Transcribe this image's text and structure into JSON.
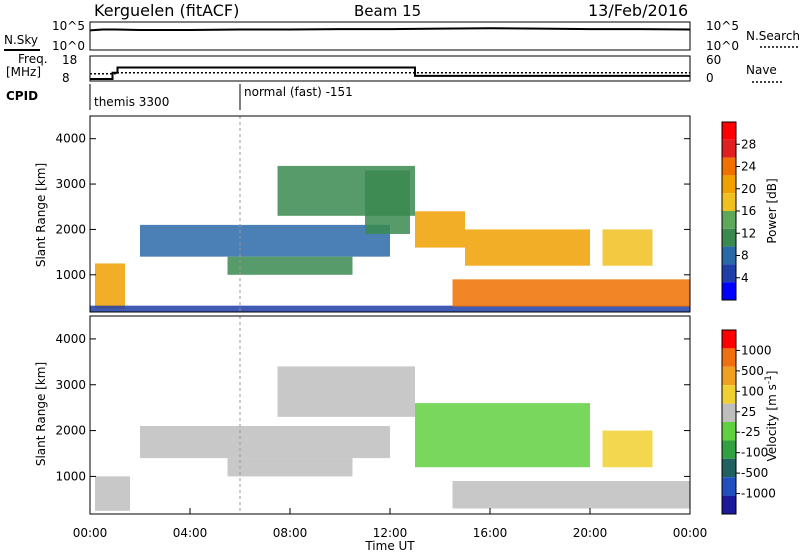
{
  "header": {
    "station": "Kerguelen (fitACF)",
    "beam": "Beam 15",
    "date": "13/Feb/2016"
  },
  "chart_data": [
    {
      "type": "line",
      "panel": "noise",
      "left_label": "N.Sky",
      "right_label": "N.Search",
      "left_ticks": [
        "10^5",
        "10^0"
      ],
      "right_ticks": [
        "10^5",
        "10^0"
      ],
      "series": [
        {
          "name": "N.Sky",
          "x": [
            0.0,
            0.5,
            1.0,
            2.0,
            4.0,
            6.0,
            8.0,
            10.0,
            12.0,
            14.0,
            16.0,
            18.0,
            20.0,
            22.0,
            24.0
          ],
          "y": [
            4.0,
            4.2,
            4.2,
            4.1,
            4.1,
            4.2,
            4.2,
            4.3,
            4.3,
            4.4,
            4.5,
            4.4,
            4.3,
            4.3,
            4.2
          ]
        }
      ]
    },
    {
      "type": "line",
      "panel": "frequency",
      "left_label_1": "Freq.",
      "left_label_2": "[MHz]",
      "right_label": "Nave",
      "left_ticks": [
        "18",
        "8"
      ],
      "right_ticks": [
        "60",
        "0"
      ],
      "series": [
        {
          "name": "Freq.",
          "x": [
            0.0,
            0.9,
            0.9,
            1.1,
            1.1,
            13.0,
            13.0,
            24.0
          ],
          "y": [
            8,
            8,
            11,
            11,
            13.5,
            13.5,
            9.5,
            9.5
          ]
        },
        {
          "name": "Nave",
          "x": [
            0.0,
            1.0,
            1.0,
            24.0
          ],
          "y": [
            15,
            15,
            18,
            18
          ]
        }
      ]
    },
    {
      "type": "table",
      "panel": "cpid",
      "label": "CPID",
      "segments": [
        {
          "start": 0.0,
          "end": 6.0,
          "label": "themis 3300"
        },
        {
          "start": 6.0,
          "end": 24.0,
          "label": "normal (fast) -151"
        }
      ]
    },
    {
      "type": "heatmap",
      "panel": "power",
      "ylabel": "Slant Range [km]",
      "yticks": [
        "4000",
        "3000",
        "2000",
        "1000"
      ],
      "ylim": [
        180,
        4500
      ],
      "xlim": [
        0,
        24
      ],
      "colorbar_label": "Power [dB]",
      "colorbar_ticks": [
        "28",
        "24",
        "20",
        "16",
        "12",
        "8",
        "4"
      ],
      "colorbar_colors": [
        "#0000ff",
        "#203ea8",
        "#2a6aa8",
        "#3a8a50",
        "#5fa85a",
        "#f0c020",
        "#f0a000",
        "#f07000",
        "#e02020",
        "#ff0000"
      ],
      "bands": [
        {
          "x": [
            0.2,
            1.4
          ],
          "y": [
            250,
            1250
          ],
          "value": 20
        },
        {
          "x": [
            0.0,
            24.0
          ],
          "y": [
            180,
            320
          ],
          "value": 6
        },
        {
          "x": [
            2.0,
            12.0
          ],
          "y": [
            1400,
            2100
          ],
          "value": 8
        },
        {
          "x": [
            5.5,
            10.5
          ],
          "y": [
            1000,
            1400
          ],
          "value": 10
        },
        {
          "x": [
            11.0,
            12.8
          ],
          "y": [
            1900,
            3300
          ],
          "value": 12
        },
        {
          "x": [
            13.0,
            15.0
          ],
          "y": [
            1600,
            2400
          ],
          "value": 22
        },
        {
          "x": [
            15.0,
            20.0
          ],
          "y": [
            1200,
            2000
          ],
          "value": 20
        },
        {
          "x": [
            14.5,
            24.0
          ],
          "y": [
            300,
            900
          ],
          "value": 25
        },
        {
          "x": [
            20.5,
            22.5
          ],
          "y": [
            1200,
            2000
          ],
          "value": 18
        },
        {
          "x": [
            7.5,
            13.0
          ],
          "y": [
            2300,
            3400
          ],
          "value": 10
        }
      ]
    },
    {
      "type": "heatmap",
      "panel": "velocity",
      "ylabel": "Slant Range [km]",
      "yticks": [
        "4000",
        "3000",
        "2000",
        "1000"
      ],
      "ylim": [
        180,
        4500
      ],
      "xlim": [
        0,
        24
      ],
      "xlabel": "Time UT",
      "xticks": [
        "00:00",
        "04:00",
        "08:00",
        "12:00",
        "16:00",
        "20:00",
        "00:00"
      ],
      "colorbar_label": "Velocity [m s",
      "colorbar_exp": "-1",
      "colorbar_label_end": "]",
      "colorbar_ticks": [
        "1000",
        "500",
        "100",
        "25",
        "-25",
        "-100",
        "-500",
        "-1000"
      ],
      "colorbar_colors": [
        "#1a1a9a",
        "#2050c0",
        "#206060",
        "#30a040",
        "#60d040",
        "#bebebe",
        "#f0d030",
        "#f0a020",
        "#f07010",
        "#ff0000"
      ],
      "bands": [
        {
          "x": [
            0.2,
            1.6
          ],
          "y": [
            250,
            1000
          ],
          "value": -200
        },
        {
          "x": [
            2.0,
            12.0
          ],
          "y": [
            1400,
            2100
          ],
          "value": 0
        },
        {
          "x": [
            5.5,
            10.5
          ],
          "y": [
            1000,
            1400
          ],
          "value": 0
        },
        {
          "x": [
            13.0,
            20.0
          ],
          "y": [
            1200,
            2600
          ],
          "value": 100
        },
        {
          "x": [
            14.5,
            24.0
          ],
          "y": [
            300,
            900
          ],
          "value": 0
        },
        {
          "x": [
            20.5,
            22.5
          ],
          "y": [
            1200,
            2000
          ],
          "value": -300
        },
        {
          "x": [
            7.5,
            13.0
          ],
          "y": [
            2300,
            3400
          ],
          "value": 0
        }
      ]
    }
  ]
}
